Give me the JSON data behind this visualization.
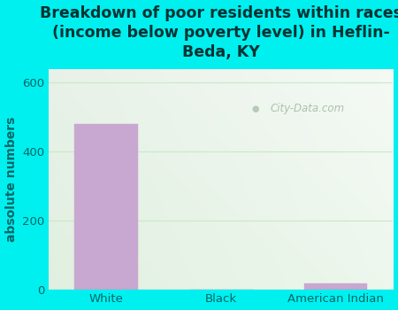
{
  "title": "Breakdown of poor residents within races\n(income below poverty level) in Heflin-\nBeda, KY",
  "categories": [
    "White",
    "Black",
    "American Indian"
  ],
  "values": [
    480,
    0,
    18
  ],
  "bar_color": "#c8a8d0",
  "bar_edge_color": "#c8a8d0",
  "ylabel": "absolute numbers",
  "ylim": [
    0,
    640
  ],
  "yticks": [
    0,
    200,
    400,
    600
  ],
  "background_outer": "#00f0f0",
  "plot_bg_topleft": "#d8edd8",
  "plot_bg_topright": "#e8f5e8",
  "plot_bg_bottomleft": "#e0f0e0",
  "plot_bg_bottomright": "#f5fff5",
  "grid_color": "#c8e8c8",
  "title_color": "#003333",
  "axis_label_color": "#006666",
  "tick_label_color": "#006666",
  "watermark": "City-Data.com",
  "title_fontsize": 12.5,
  "ylabel_fontsize": 10,
  "tick_fontsize": 9.5
}
